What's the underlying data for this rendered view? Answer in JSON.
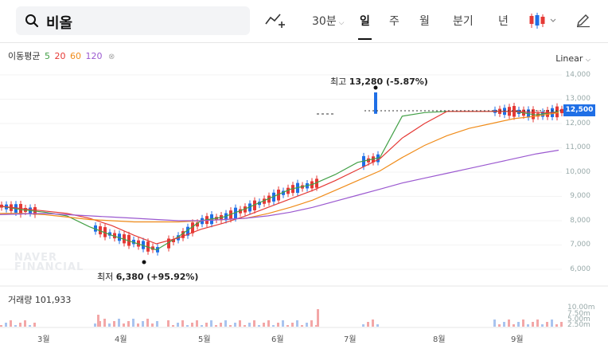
{
  "search": {
    "query": "비올"
  },
  "periods": [
    "30분",
    "일",
    "주",
    "월",
    "분기",
    "년"
  ],
  "active_period": "일",
  "legend": {
    "label": "이동평균",
    "items": [
      {
        "text": "5",
        "color": "#43a047"
      },
      {
        "text": "20",
        "color": "#e53935"
      },
      {
        "text": "60",
        "color": "#f08c1a"
      },
      {
        "text": "120",
        "color": "#9b59d0"
      }
    ]
  },
  "scale": "Linear",
  "y_ticks": [
    "14,000",
    "13,000",
    "12,000",
    "11,000",
    "10,000",
    "9,000",
    "8,000",
    "7,000",
    "6,000"
  ],
  "current_price": "12,500",
  "high_annotation": {
    "label": "최고",
    "value": "13,280 (-5.87%)"
  },
  "low_annotation": {
    "label": "최저",
    "value": "6,380 (+95.92%)"
  },
  "watermark": [
    "NAVER",
    "FINANCIAL"
  ],
  "volume": {
    "label": "거래량",
    "value": "101,933",
    "ticks": [
      "10.00m",
      "7.50m",
      "5.00m",
      "2.50m"
    ]
  },
  "months": [
    "3월",
    "4월",
    "5월",
    "6월",
    "7월",
    "8월",
    "9월"
  ],
  "colors": {
    "up": "#e53935",
    "down": "#1f6fe6",
    "accent": "#1f6fe6"
  },
  "chart_data": {
    "type": "line",
    "title": "",
    "series": [
      {
        "name": "5",
        "color": "#43a047",
        "values": [
          8600,
          8450,
          8350,
          8200,
          7750,
          7400,
          7100,
          6800,
          7350,
          8000,
          8150,
          8500,
          8900,
          9300,
          9500,
          9900,
          10400,
          10600,
          12300,
          12450,
          12500,
          12500,
          12500,
          12500,
          12350,
          12500
        ]
      },
      {
        "name": "20",
        "color": "#e53935",
        "values": [
          8600,
          8500,
          8400,
          8300,
          8100,
          7800,
          7400,
          7050,
          7300,
          7650,
          7900,
          8200,
          8550,
          8900,
          9250,
          9650,
          10100,
          10550,
          11400,
          12000,
          12500,
          12500,
          12500,
          12500,
          12450,
          12450
        ]
      },
      {
        "name": "60",
        "color": "#f08c1a",
        "values": [
          8300,
          8300,
          8250,
          8150,
          8050,
          8000,
          7950,
          7950,
          7950,
          8000,
          8050,
          8100,
          8300,
          8550,
          8850,
          9250,
          9650,
          10050,
          10600,
          11100,
          11500,
          11800,
          12000,
          12200,
          12300,
          12450
        ]
      },
      {
        "name": "120",
        "color": "#9b59d0",
        "values": [
          8250,
          8280,
          8300,
          8250,
          8200,
          8150,
          8100,
          8050,
          8000,
          8000,
          8050,
          8100,
          8200,
          8350,
          8550,
          8800,
          9050,
          9300,
          9550,
          9750,
          9950,
          10150,
          10350,
          10550,
          10750,
          10900
        ]
      }
    ],
    "ylim": [
      6000,
      14000
    ],
    "high": 13280,
    "low": 6380,
    "current": 12500,
    "volume_ylim": [
      0,
      10000000
    ]
  }
}
